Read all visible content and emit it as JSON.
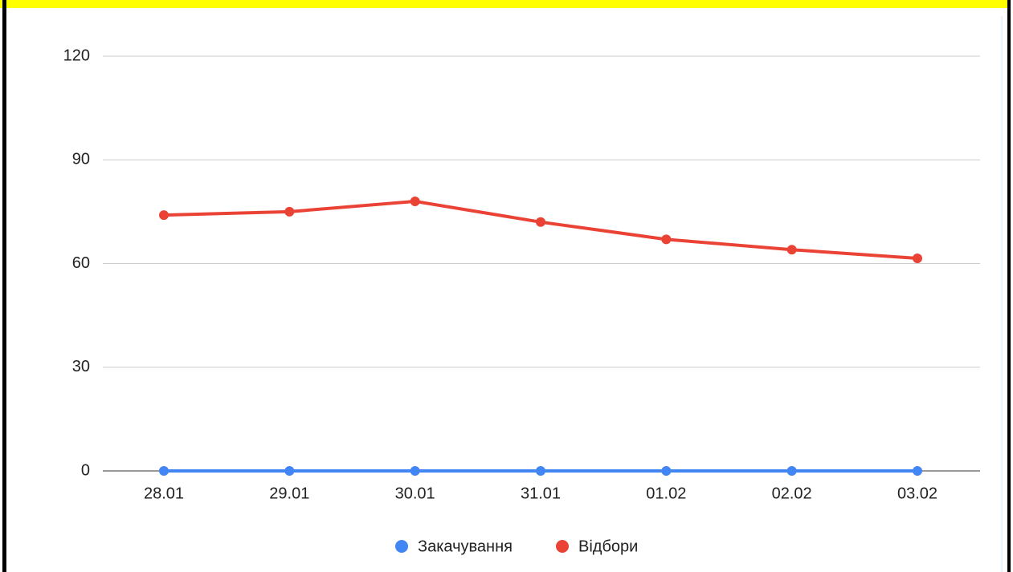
{
  "chart_data": {
    "type": "line",
    "categories": [
      "28.01",
      "29.01",
      "30.01",
      "31.01",
      "01.02",
      "02.02",
      "03.02"
    ],
    "series": [
      {
        "name": "Закачування",
        "color": "#4285f4",
        "values": [
          0,
          0,
          0,
          0,
          0,
          0,
          0
        ]
      },
      {
        "name": "Відбори",
        "color": "#ea4335",
        "values": [
          74,
          75,
          78,
          72,
          67,
          64,
          61.5
        ]
      }
    ],
    "ylim": [
      0,
      120
    ],
    "yticks": [
      0,
      30,
      60,
      90,
      120
    ],
    "grid": true,
    "legend": "bottom"
  }
}
